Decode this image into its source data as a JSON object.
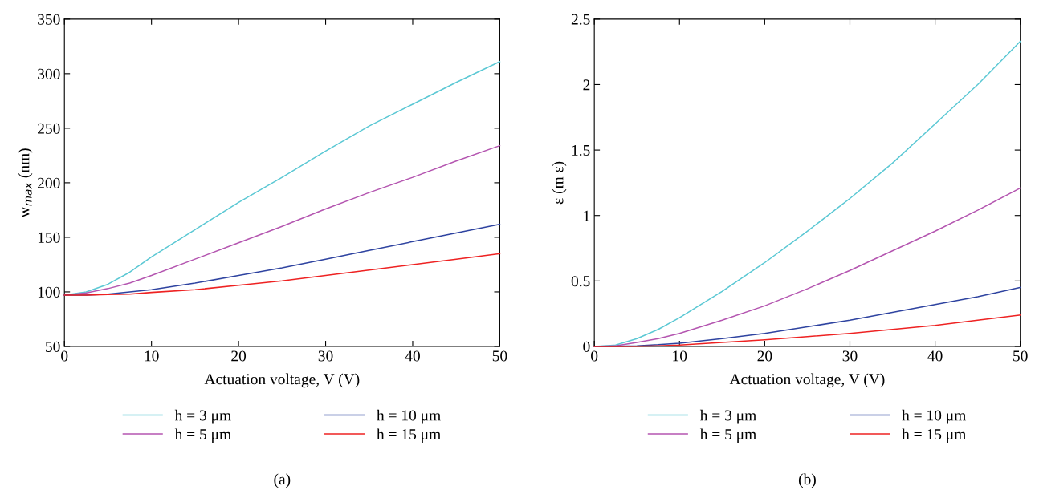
{
  "chart_data": [
    {
      "type": "line",
      "xlabel": "Actuation voltage, V (V)",
      "ylabel": "w$_{max}$ (nm)",
      "x": [
        0,
        2.5,
        5,
        7.5,
        10,
        15,
        20,
        25,
        30,
        35,
        40,
        45,
        50
      ],
      "xlim": [
        0,
        50
      ],
      "xticks": [
        0,
        10,
        20,
        30,
        40,
        50
      ],
      "ylim": [
        50,
        350
      ],
      "yticks": [
        50,
        100,
        150,
        200,
        250,
        300,
        350
      ],
      "legend": "bottom",
      "grid": false,
      "annotations": [
        "(a)"
      ],
      "series": [
        {
          "name": "h = 3 μm",
          "color": "#5bc8d4",
          "values": [
            97,
            100,
            107,
            118,
            132,
            157,
            182,
            205,
            229,
            252,
            272,
            292,
            311
          ]
        },
        {
          "name": "h = 5 μm",
          "color": "#b455b0",
          "values": [
            97,
            99,
            103,
            108,
            115,
            130,
            145,
            160,
            176,
            191,
            205,
            220,
            234
          ]
        },
        {
          "name": "h = 10 μm",
          "color": "#2e43a0",
          "values": [
            97,
            97,
            98,
            100,
            102,
            108,
            115,
            122,
            130,
            138,
            146,
            154,
            162
          ]
        },
        {
          "name": "h = 15 μm",
          "color": "#ee2222",
          "values": [
            97,
            97,
            97.5,
            98,
            99.5,
            102,
            106,
            110,
            115,
            120,
            125,
            130,
            135
          ]
        }
      ]
    },
    {
      "type": "line",
      "xlabel": "Actuation voltage, V (V)",
      "ylabel": "ε (m ε)",
      "x": [
        0,
        2.5,
        5,
        7.5,
        10,
        15,
        20,
        25,
        30,
        35,
        40,
        45,
        50
      ],
      "xlim": [
        0,
        50
      ],
      "xticks": [
        0,
        10,
        20,
        30,
        40,
        50
      ],
      "ylim": [
        0,
        2.5
      ],
      "yticks": [
        0,
        0.5,
        1,
        1.5,
        2,
        2.5
      ],
      "legend": "bottom",
      "grid": false,
      "annotations": [
        "(b)"
      ],
      "series": [
        {
          "name": "h = 3 μm",
          "color": "#5bc8d4",
          "values": [
            0,
            0.01,
            0.06,
            0.13,
            0.22,
            0.42,
            0.64,
            0.88,
            1.13,
            1.4,
            1.7,
            2.0,
            2.33
          ]
        },
        {
          "name": "h = 5 μm",
          "color": "#b455b0",
          "values": [
            0,
            0.005,
            0.03,
            0.06,
            0.1,
            0.2,
            0.31,
            0.44,
            0.58,
            0.73,
            0.88,
            1.04,
            1.21
          ]
        },
        {
          "name": "h = 10 μm",
          "color": "#2e43a0",
          "values": [
            0,
            0.001,
            0.005,
            0.013,
            0.025,
            0.06,
            0.1,
            0.15,
            0.2,
            0.26,
            0.32,
            0.38,
            0.45
          ]
        },
        {
          "name": "h = 15 μm",
          "color": "#ee2222",
          "values": [
            0,
            0,
            0.002,
            0.005,
            0.01,
            0.03,
            0.05,
            0.075,
            0.1,
            0.13,
            0.16,
            0.2,
            0.24
          ]
        }
      ]
    }
  ]
}
